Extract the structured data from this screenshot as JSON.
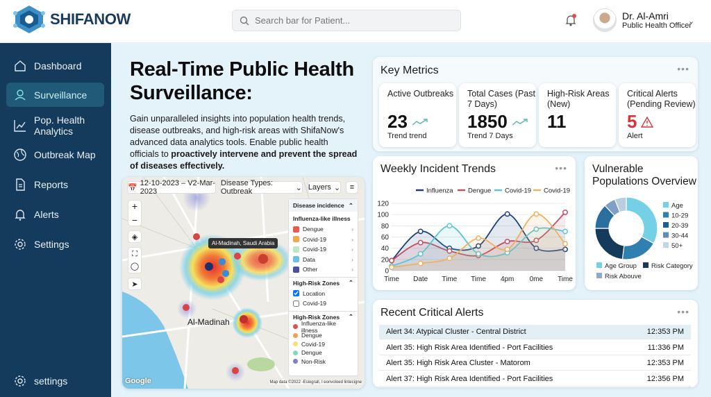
{
  "app": {
    "name": "SHIFANOW"
  },
  "header": {
    "search_placeholder": "Search bar for Patient...",
    "user_name": "Dr. Al-Amri",
    "user_role": "Public Health Officer"
  },
  "sidebar": {
    "items": [
      {
        "label": "Dashboard",
        "icon": "home-icon"
      },
      {
        "label": "Surveillance",
        "icon": "location-user-icon",
        "active": true
      },
      {
        "label": "Pop. Health Analytics",
        "icon": "bar-chart-icon"
      },
      {
        "label": "Outbreak Map",
        "icon": "globe-icon"
      },
      {
        "label": "Reports",
        "icon": "document-icon"
      },
      {
        "label": "Alerts",
        "icon": "bell-icon"
      },
      {
        "label": "Settings",
        "icon": "gear-icon"
      }
    ],
    "bottom_label": "settings"
  },
  "hero": {
    "title": "Real-Time Public Health Surveillance:",
    "body": "Gain unparalleled insights into population health trends, disease outbreaks, and high-risk areas with ShifaNow's advanced data analytics tools. Enable public health officials to ",
    "body_bold": "proactively intervene and prevent the spread of diseases effectively."
  },
  "map": {
    "date_range": "12-10-2023 – V2-Mar-2023",
    "disease_filter": "Disease Types: Outbreak",
    "layers_label": "Layers",
    "tooltip": "Al-Madinah, Saudi Arabia",
    "city_label": "Al-Madinah",
    "attribution": "Map data ©2022 -Esiograll, I eonvoloed lintecigne",
    "google": "Google",
    "legend": {
      "title": "Disease incidence",
      "group1_title": "Influenza-like illness",
      "group1": [
        {
          "label": "Dengue",
          "color": "#e85a4f"
        },
        {
          "label": "Covid-19",
          "color": "#f2a94a"
        },
        {
          "label": "Covid-19",
          "color": "#bfe6c0"
        },
        {
          "label": "Data",
          "color": "#6cc0e8"
        },
        {
          "label": "Other",
          "color": "#4a4fa0"
        }
      ],
      "group2_title": "High-Risk Zones",
      "group2": [
        {
          "label": "Location",
          "checked": true
        },
        {
          "label": "Covid-19",
          "checked": false
        }
      ],
      "group3_title": "High-Risk Zones",
      "group3": [
        {
          "label": "Influenza-like illness",
          "color": "#d9534f"
        },
        {
          "label": "Dengue",
          "color": "#f0a050"
        },
        {
          "label": "Covid-19",
          "color": "#f6e07a"
        },
        {
          "label": "Dengue",
          "color": "#7fd8c0"
        },
        {
          "label": "Non-Risk",
          "color": "#7a80c8"
        }
      ]
    }
  },
  "metrics": {
    "title": "Key Metrics",
    "items": [
      {
        "label": "Active Outbreaks",
        "value": "23",
        "sub": "Trend trend",
        "trend": "up"
      },
      {
        "label": "Total Cases (Past 7 Days)",
        "value": "1850",
        "sub": "Trend 7 Days",
        "trend": "up"
      },
      {
        "label": "High-Risk Areas (New)",
        "value": "11",
        "sub": ""
      },
      {
        "label": "Critical Alerts (Pending Review)",
        "value": "5",
        "sub": "Alert",
        "color": "#d9343a"
      }
    ]
  },
  "chart_data": [
    {
      "type": "line",
      "title": "Weekly Incident Trends",
      "categories": [
        "Time",
        "Date",
        "Time",
        "Time",
        "4pm",
        "0me",
        "Time"
      ],
      "ylim": [
        0,
        120
      ],
      "yticks": [
        0,
        20,
        40,
        60,
        80,
        100,
        120
      ],
      "legend": "top",
      "series": [
        {
          "name": "Influenza",
          "color": "#1e3f7a",
          "values": [
            18,
            70,
            40,
            44,
            101,
            40,
            38
          ]
        },
        {
          "name": "Dengue",
          "color": "#c0505f",
          "values": [
            18,
            50,
            35,
            27,
            52,
            54,
            104
          ]
        },
        {
          "name": "Covid-19",
          "color": "#5cc6d0",
          "values": [
            8,
            30,
            80,
            30,
            32,
            74,
            70
          ]
        },
        {
          "name": "Covid-19",
          "color": "#f0b060",
          "values": [
            6,
            13,
            22,
            58,
            38,
            101,
            48
          ]
        }
      ]
    },
    {
      "type": "pie",
      "title": "Vulnerable Populations Overview",
      "categories": [
        "Age",
        "10-29",
        "20-39",
        "30-44",
        "50+"
      ],
      "slices": [
        {
          "label": "Age",
          "value": 33,
          "color": "#74d0e4"
        },
        {
          "label": "10-29",
          "value": 19,
          "color": "#2f7fb0"
        },
        {
          "label": "20-39",
          "value": 23,
          "color": "#143a5c"
        },
        {
          "label": "30-44",
          "value": 13,
          "color": "#2a6f9e"
        },
        {
          "label": "50+",
          "value": 6,
          "color": "#7f9fc4"
        },
        {
          "label": "",
          "value": 6,
          "color": "#b8cfe0"
        }
      ],
      "legend_colors": [
        "#74d0e4",
        "#2f7fb0",
        "#1f5f8f",
        "#5f8fb8",
        "#c0d8e6"
      ],
      "bottom_legend": [
        {
          "label": "Age Group",
          "color": "#74d0e4"
        },
        {
          "label": "Risk Category",
          "color": "#143a5c"
        },
        {
          "label": "Risk Abouve",
          "color": "#8fa8d0"
        }
      ]
    }
  ],
  "alerts": {
    "title": "Recent Critical Alerts",
    "items": [
      {
        "text": "Alert 34: Atypical Cluster - Central District",
        "time": "12:353 PM"
      },
      {
        "text": "Alert 35: High Risk Area Identified - Port Facilities",
        "time": "11:336 PM"
      },
      {
        "text": "Alert 35: High Risk Area Cluster - Matorom",
        "time": "12:353 PM"
      },
      {
        "text": "Alert 37: High Risk Area Identified - Port Facilities",
        "time": "12:356 PM"
      }
    ]
  }
}
